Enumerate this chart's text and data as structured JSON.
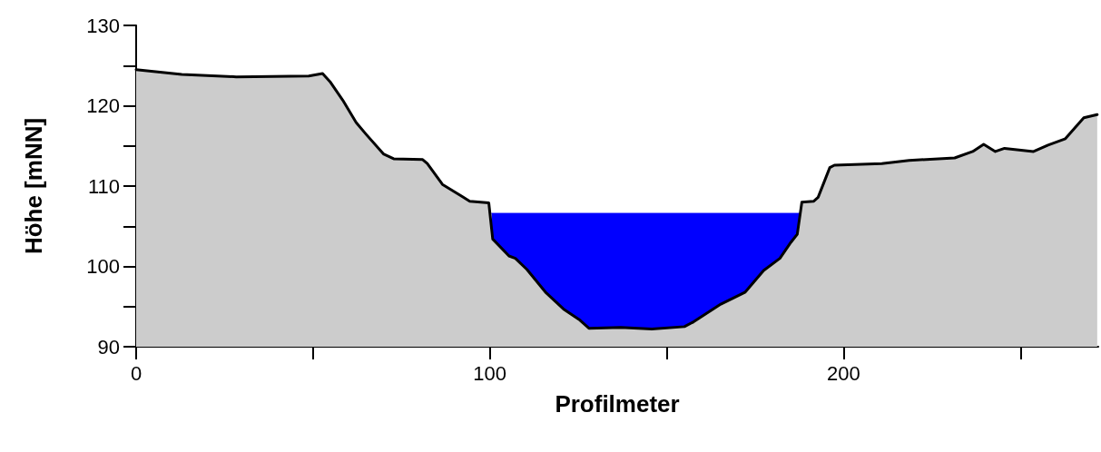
{
  "chart_data": {
    "type": "area",
    "xlabel": "Profilmeter",
    "ylabel": "Höhe [mNN]",
    "xlim": [
      0,
      272
    ],
    "ylim": [
      90,
      130
    ],
    "xticks": [
      0,
      {
        "value": 50,
        "label": null
      },
      100,
      {
        "value": 150,
        "label": null
      },
      200,
      {
        "value": 250,
        "label": null
      }
    ],
    "yticks": [
      90,
      {
        "value": 95,
        "label": null
      },
      100,
      {
        "value": 105,
        "label": null
      },
      110,
      {
        "value": 115,
        "label": null
      },
      120,
      {
        "value": 125,
        "label": null
      },
      130
    ],
    "grid": false,
    "marker": "none",
    "line_style": "solid",
    "series": [
      {
        "color": "#0000ff",
        "x": [
          100.5,
          188
        ],
        "values": [
          106.6,
          106.6
        ]
      },
      {
        "color": "#cccccc",
        "x": [
          0,
          12.9,
          28.3,
          48.8,
          52.7,
          54.8,
          58.4,
          62.2,
          65.1,
          69.9,
          72.8,
          81.0,
          82.3,
          86.6,
          90.7,
          94.3,
          99.7,
          100.8,
          105.4,
          107.2,
          110.5,
          115.7,
          120.8,
          125.2,
          128.0,
          137.0,
          145.8,
          155.0,
          157.6,
          165.3,
          172.2,
          177.4,
          182.0,
          185.1,
          186.9,
          188.2,
          191.5,
          192.8,
          196.1,
          197.4,
          210.8,
          218.5,
          231.4,
          236.5,
          239.6,
          242.9,
          245.5,
          253.7,
          257.8,
          262.7,
          267.9,
          271.7
        ],
        "values": [
          124.5,
          123.9,
          123.6,
          123.7,
          124.0,
          123.0,
          120.7,
          117.9,
          116.4,
          114.0,
          113.4,
          113.3,
          112.8,
          110.2,
          109.1,
          108.1,
          107.9,
          103.4,
          101.3,
          101.0,
          99.6,
          96.8,
          94.7,
          93.4,
          92.3,
          92.4,
          92.2,
          92.5,
          93.1,
          95.3,
          96.8,
          99.5,
          101.0,
          103.0,
          104.0,
          108.0,
          108.1,
          108.6,
          112.3,
          112.6,
          112.8,
          113.2,
          113.5,
          114.3,
          115.2,
          114.3,
          114.7,
          114.3,
          115.1,
          115.9,
          118.5,
          118.9
        ]
      }
    ]
  }
}
